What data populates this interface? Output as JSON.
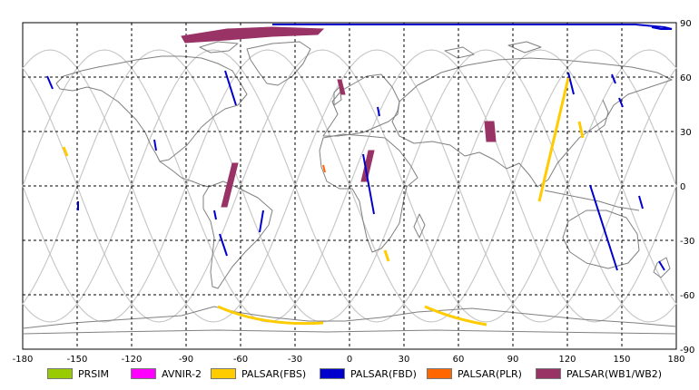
{
  "map": {
    "x_ticks": [
      "-180",
      "-150",
      "-120",
      "-90",
      "-60",
      "-30",
      "0",
      "30",
      "60",
      "90",
      "120",
      "150",
      "180"
    ],
    "y_ticks_right": [
      "90",
      "60",
      "30",
      "0",
      "-30",
      "-60",
      "-90"
    ]
  },
  "legend": [
    {
      "label": "PRSIM",
      "color": "#99cc00"
    },
    {
      "label": "AVNIR-2",
      "color": "#ff00ff"
    },
    {
      "label": "PALSAR(FBS)",
      "color": "#ffcc00"
    },
    {
      "label": "PALSAR(FBD)",
      "color": "#0000cc"
    },
    {
      "label": "PALSAR(PLR)",
      "color": "#ff6600"
    },
    {
      "label": "PALSAR(WB1/WB2)",
      "color": "#993366"
    }
  ],
  "colors": {
    "coast": "#808080",
    "orbit": "#c8c8c8",
    "grid": "#000000",
    "fbs": "#ffcc00",
    "fbd": "#0000cc",
    "plr": "#ff6600",
    "wb": "#993366"
  }
}
